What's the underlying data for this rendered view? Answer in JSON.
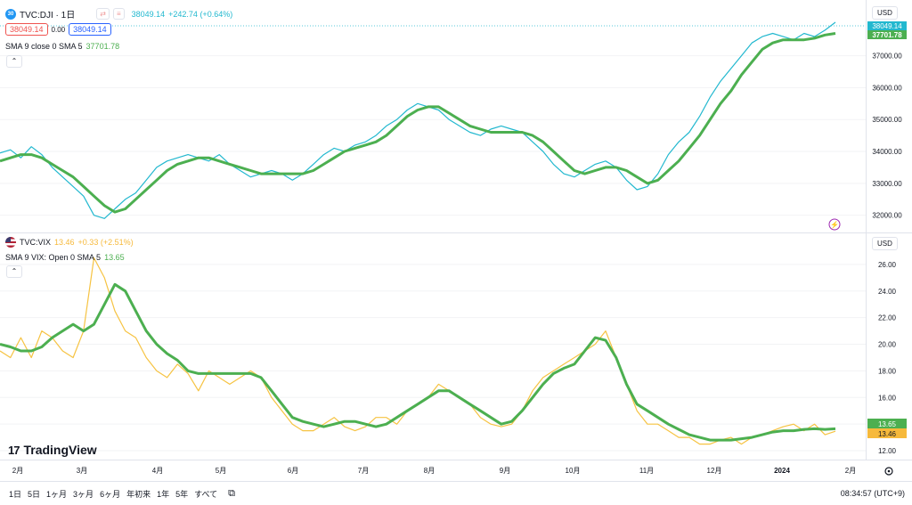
{
  "colors": {
    "price_line": "#22b8cf",
    "sma_line": "#4caf50",
    "vix_line": "#f6c342",
    "text": "#131722",
    "muted": "#6a6d78",
    "grid": "#eef0f3",
    "axis_border": "#e0e3eb",
    "last_price_dashed": "#22b8cf",
    "vix_change": "#f6b93b",
    "dji_change": "#22b8cf"
  },
  "top_pane": {
    "symbol_badge": "30",
    "symbol": "TVC:DJI · 1日",
    "icon_labels": {
      "compare": "⇄",
      "add": "≡"
    },
    "price": "38049.14",
    "change": "+242.74 (+0.64%)",
    "sell_price": "38049.14",
    "spread": "0.00",
    "buy_price": "38049.14",
    "indicator_name": "SMA 9 close 0 SMA 5",
    "indicator_value": "37701.78",
    "currency": "USD",
    "y_ticks": [
      "37000.00",
      "36000.00",
      "35000.00",
      "34000.00",
      "33000.00",
      "32000.00"
    ],
    "last_label": "38049.14",
    "sma_label": "37701.78"
  },
  "bottom_pane": {
    "symbol": "TVC:VIX",
    "price": "13.46",
    "change": "+0.33 (+2.51%)",
    "indicator_name": "SMA 9 VIX: Open 0 SMA 5",
    "indicator_value": "13.65",
    "currency": "USD",
    "y_ticks": [
      "26.00",
      "24.00",
      "22.00",
      "20.00",
      "18.00",
      "16.00",
      "14.00",
      "12.00"
    ],
    "sma_label": "13.65",
    "last_label": "13.46"
  },
  "x_axis": {
    "ticks": [
      "2月",
      "3月",
      "4月",
      "5月",
      "6月",
      "7月",
      "8月",
      "9月",
      "10月",
      "11月",
      "12月",
      "2024",
      "2月"
    ],
    "settings_icon": "gear-icon"
  },
  "toolbar": {
    "timeframes": [
      "1日",
      "5日",
      "1ヶ月",
      "3ヶ月",
      "6ヶ月",
      "年初来",
      "1年",
      "5年",
      "すべて"
    ],
    "calendar_icon": "calendar-icon",
    "clock": "08:34:57 (UTC+9)"
  },
  "branding": {
    "logo_text": "TradingView",
    "logo_mark": "17"
  },
  "chart_data": [
    {
      "type": "line",
      "title": "TVC:DJI · 1日",
      "x_labels": [
        "2月",
        "3月",
        "4月",
        "5月",
        "6月",
        "7月",
        "8月",
        "9月",
        "10月",
        "11月",
        "12月",
        "2024",
        "2月"
      ],
      "ylim": [
        31600,
        38300
      ],
      "series": [
        {
          "name": "TVC:DJI",
          "color": "#22b8cf",
          "values": [
            33950,
            34050,
            33800,
            34150,
            33900,
            33500,
            33200,
            32900,
            32600,
            32000,
            31900,
            32200,
            32500,
            32700,
            33100,
            33500,
            33700,
            33800,
            33900,
            33800,
            33700,
            33900,
            33600,
            33400,
            33200,
            33300,
            33400,
            33300,
            33100,
            33300,
            33600,
            33900,
            34100,
            34000,
            34200,
            34300,
            34500,
            34800,
            35000,
            35300,
            35500,
            35400,
            35300,
            35000,
            34800,
            34600,
            34500,
            34700,
            34800,
            34700,
            34600,
            34300,
            34000,
            33600,
            33300,
            33200,
            33400,
            33600,
            33700,
            33500,
            33100,
            32800,
            32900,
            33300,
            33900,
            34300,
            34600,
            35100,
            35700,
            36200,
            36600,
            37000,
            37400,
            37600,
            37700,
            37600,
            37500,
            37700,
            37600,
            37800,
            38049
          ]
        },
        {
          "name": "SMA 9 close 0 SMA 5",
          "color": "#4caf50",
          "values": [
            33700,
            33800,
            33900,
            33900,
            33800,
            33600,
            33400,
            33200,
            32900,
            32600,
            32300,
            32100,
            32200,
            32500,
            32800,
            33100,
            33400,
            33600,
            33700,
            33800,
            33800,
            33700,
            33600,
            33500,
            33400,
            33300,
            33300,
            33300,
            33300,
            33300,
            33400,
            33600,
            33800,
            34000,
            34100,
            34200,
            34300,
            34500,
            34800,
            35100,
            35300,
            35400,
            35400,
            35200,
            35000,
            34800,
            34700,
            34600,
            34600,
            34600,
            34600,
            34500,
            34300,
            34000,
            33700,
            33400,
            33300,
            33400,
            33500,
            33500,
            33400,
            33200,
            33000,
            33100,
            33400,
            33700,
            34100,
            34500,
            35000,
            35500,
            35900,
            36400,
            36800,
            37200,
            37400,
            37500,
            37500,
            37500,
            37550,
            37650,
            37701
          ]
        }
      ]
    },
    {
      "type": "line",
      "title": "TVC:VIX",
      "x_labels": [
        "2月",
        "3月",
        "4月",
        "5月",
        "6月",
        "7月",
        "8月",
        "9月",
        "10月",
        "11月",
        "12月",
        "2024",
        "2月"
      ],
      "ylim": [
        11.6,
        27
      ],
      "series": [
        {
          "name": "TVC:VIX",
          "color": "#f6c342",
          "values": [
            19.5,
            19.0,
            20.5,
            19.0,
            21.0,
            20.5,
            19.5,
            19.0,
            21.0,
            26.5,
            25.0,
            22.5,
            21.0,
            20.5,
            19.0,
            18.0,
            17.5,
            18.5,
            17.8,
            16.5,
            18.0,
            17.5,
            17.0,
            17.5,
            18.0,
            17.5,
            16.0,
            15.0,
            14.0,
            13.5,
            13.5,
            14.0,
            14.5,
            13.8,
            13.5,
            13.8,
            14.5,
            14.5,
            14.0,
            15.0,
            15.5,
            16.0,
            17.0,
            16.5,
            16.0,
            15.5,
            14.5,
            14.0,
            13.8,
            14.0,
            15.0,
            16.5,
            17.5,
            18.0,
            18.5,
            19.0,
            19.5,
            20.0,
            21.0,
            19.0,
            17.0,
            15.0,
            14.0,
            14.0,
            13.5,
            13.0,
            13.0,
            12.5,
            12.5,
            12.8,
            13.0,
            12.5,
            13.0,
            13.2,
            13.5,
            13.8,
            14.0,
            13.5,
            14.0,
            13.2,
            13.46
          ]
        },
        {
          "name": "SMA 9 VIX: Open 0 SMA 5",
          "color": "#4caf50",
          "values": [
            20.0,
            19.8,
            19.5,
            19.5,
            19.8,
            20.5,
            21.0,
            21.5,
            21.0,
            21.5,
            23.0,
            24.5,
            24.0,
            22.5,
            21.0,
            20.0,
            19.3,
            18.8,
            18.0,
            17.8,
            17.8,
            17.8,
            17.8,
            17.8,
            17.8,
            17.5,
            16.5,
            15.5,
            14.5,
            14.2,
            14.0,
            13.8,
            14.0,
            14.2,
            14.2,
            14.0,
            13.8,
            14.0,
            14.5,
            15.0,
            15.5,
            16.0,
            16.5,
            16.5,
            16.0,
            15.5,
            15.0,
            14.5,
            14.0,
            14.2,
            15.0,
            16.0,
            17.0,
            17.8,
            18.2,
            18.5,
            19.5,
            20.5,
            20.3,
            19.0,
            17.0,
            15.5,
            15.0,
            14.5,
            14.0,
            13.6,
            13.2,
            13.0,
            12.8,
            12.8,
            12.8,
            12.9,
            13.0,
            13.2,
            13.4,
            13.5,
            13.5,
            13.6,
            13.65,
            13.6,
            13.65
          ]
        }
      ]
    }
  ]
}
